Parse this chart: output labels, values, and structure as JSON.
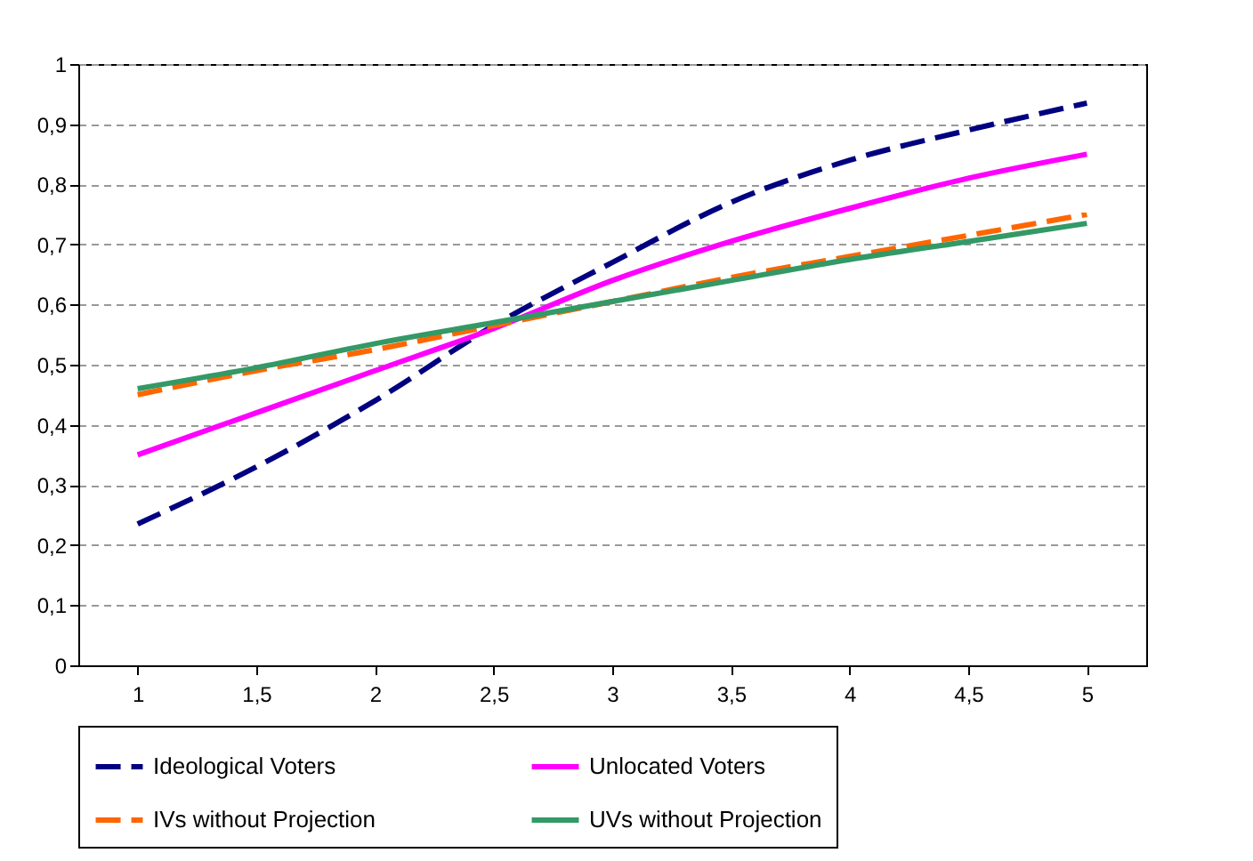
{
  "chart_data": {
    "type": "line",
    "categories": [
      "1",
      "1,5",
      "2",
      "2,5",
      "3",
      "3,5",
      "4",
      "4,5",
      "5"
    ],
    "ylim": [
      0,
      1
    ],
    "yticks": [
      0,
      {
        "value": 0.1,
        "label": "0,1"
      },
      {
        "value": 0.2,
        "label": "0,2"
      },
      {
        "value": 0.3,
        "label": "0,3"
      },
      {
        "value": 0.4,
        "label": "0,4"
      },
      {
        "value": 0.5,
        "label": "0,5"
      },
      {
        "value": 0.6,
        "label": "0,6"
      },
      {
        "value": 0.7,
        "label": "0,7"
      },
      {
        "value": 0.8,
        "label": "0,8"
      },
      {
        "value": 0.9,
        "label": "0,9"
      },
      1
    ],
    "grid": "y",
    "legend": "bottom",
    "marker": "none",
    "series": [
      {
        "name": "Ideological Voters",
        "color": "#000080",
        "line_style": "dashed",
        "values": [
          0.235,
          0.33,
          0.44,
          0.565,
          0.67,
          0.77,
          0.84,
          0.89,
          0.935
        ]
      },
      {
        "name": "Unlocated Voters",
        "color": "#ff00ff",
        "line_style": "solid",
        "values": [
          0.35,
          0.42,
          0.49,
          0.56,
          0.64,
          0.705,
          0.76,
          0.81,
          0.85
        ]
      },
      {
        "name": "IVs without Projection",
        "color": "#ff6600",
        "line_style": "dashed",
        "values": [
          0.45,
          0.49,
          0.525,
          0.565,
          0.605,
          0.645,
          0.68,
          0.715,
          0.75
        ]
      },
      {
        "name": "UVs without Projection",
        "color": "#339966",
        "line_style": "solid",
        "values": [
          0.46,
          0.495,
          0.535,
          0.57,
          0.605,
          0.64,
          0.675,
          0.705,
          0.735
        ]
      }
    ]
  }
}
